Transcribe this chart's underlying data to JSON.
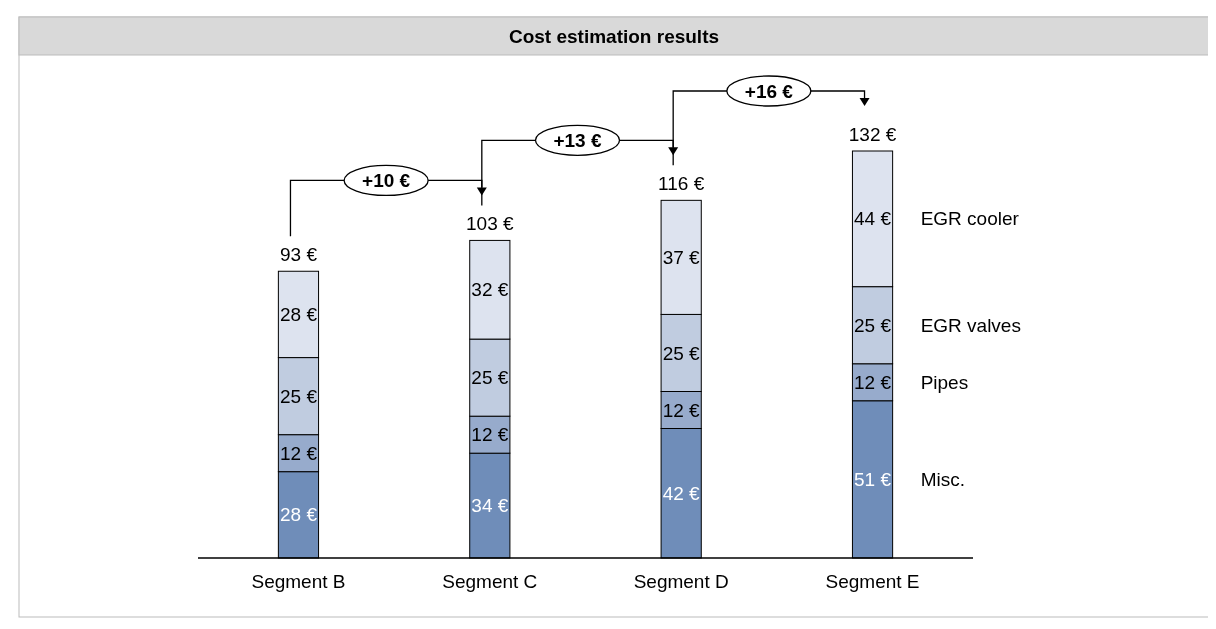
{
  "chart_data": {
    "type": "bar",
    "stacked": true,
    "title": "Cost estimation results",
    "categories": [
      "Segment B",
      "Segment C",
      "Segment D",
      "Segment E"
    ],
    "series": [
      {
        "name": "Misc.",
        "color": "#6f8db9",
        "values": [
          28,
          34,
          42,
          51
        ],
        "value_labels": [
          "28 €",
          "34 €",
          "42 €",
          "51 €"
        ]
      },
      {
        "name": "Pipes",
        "color": "#97abcc",
        "values": [
          12,
          12,
          12,
          12
        ],
        "value_labels": [
          "12 €",
          "12 €",
          "12 €",
          "12 €"
        ]
      },
      {
        "name": "EGR valves",
        "color": "#c0cce0",
        "values": [
          25,
          25,
          25,
          25
        ],
        "value_labels": [
          "25 €",
          "25 €",
          "25 €",
          "25 €"
        ]
      },
      {
        "name": "EGR cooler",
        "color": "#dde3ef",
        "values": [
          28,
          32,
          37,
          44
        ],
        "value_labels": [
          "28 €",
          "32 €",
          "37 €",
          "44 €"
        ]
      }
    ],
    "totals": [
      "93 €",
      "103 €",
      "116 €",
      "132 €"
    ],
    "annotations": [
      "+10 €",
      "+13 €",
      "+16 €"
    ]
  }
}
